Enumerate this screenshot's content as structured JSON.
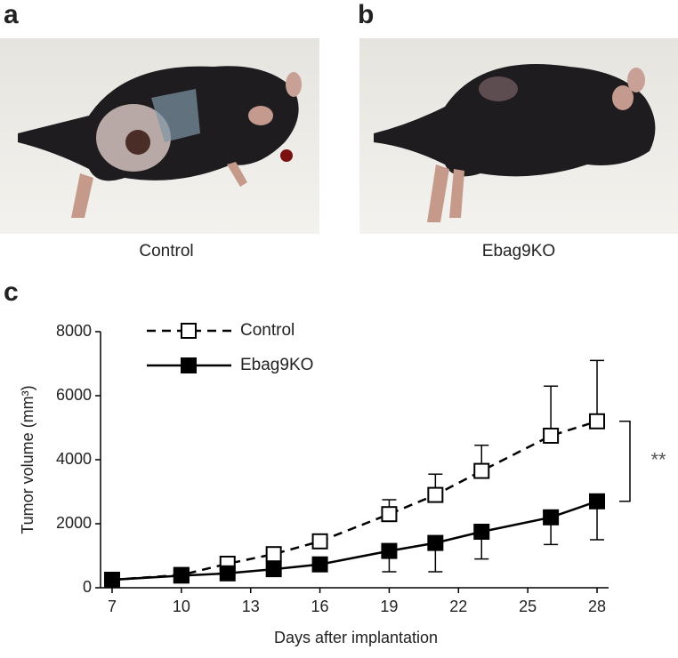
{
  "panels": [
    {
      "label": "a",
      "caption": "Control"
    },
    {
      "label": "b",
      "caption": "Ebag9KO"
    }
  ],
  "chart_label": "c",
  "chart_data": {
    "type": "line",
    "x_label": "Days after implantation",
    "y_label": "Tumor volume (mm³)",
    "xlim": [
      6.5,
      28.5
    ],
    "ylim": [
      0,
      8000
    ],
    "xticks": [
      7,
      10,
      13,
      16,
      19,
      22,
      25,
      28
    ],
    "yticks": [
      0,
      2000,
      4000,
      6000,
      8000
    ],
    "legend": "upper left",
    "annotation": "**",
    "series": [
      {
        "name": "Control",
        "color": "#000000",
        "dash": true,
        "marker": "open-square",
        "error_direction": "up",
        "x": [
          7,
          10,
          12,
          14,
          16,
          19,
          21,
          23,
          26,
          28
        ],
        "values": [
          250,
          400,
          750,
          1050,
          1450,
          2300,
          2900,
          3650,
          4750,
          5200
        ],
        "errors": [
          80,
          100,
          100,
          120,
          200,
          450,
          650,
          800,
          1550,
          1900
        ]
      },
      {
        "name": "Ebag9KO",
        "color": "#000000",
        "dash": false,
        "marker": "filled-square",
        "error_direction": "down",
        "x": [
          7,
          10,
          12,
          14,
          16,
          19,
          21,
          23,
          26,
          28
        ],
        "values": [
          250,
          380,
          450,
          580,
          730,
          1150,
          1400,
          1750,
          2200,
          2700
        ],
        "errors": [
          80,
          100,
          100,
          120,
          200,
          650,
          900,
          850,
          850,
          1200
        ]
      }
    ]
  }
}
